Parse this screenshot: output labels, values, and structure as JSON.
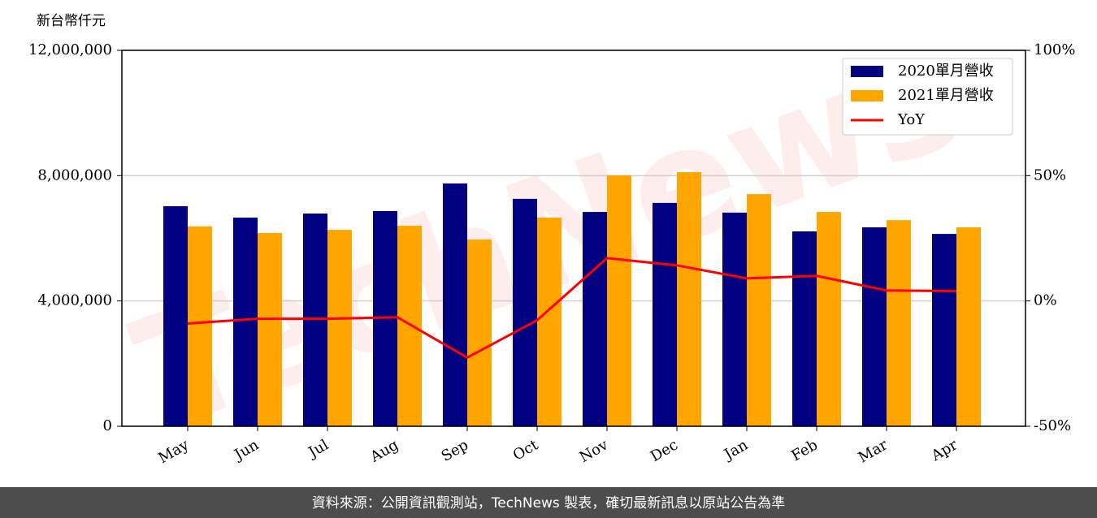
{
  "chart_data": {
    "type": "bar",
    "ylabel": "新台幣仟元",
    "watermark": "TechNews",
    "footer": "資料來源：公開資訊觀測站，TechNews 製表，確切最新訊息以原站公告為準",
    "categories": [
      "May",
      "Jun",
      "Jul",
      "Aug",
      "Sep",
      "Oct",
      "Nov",
      "Dec",
      "Jan",
      "Feb",
      "Mar",
      "Apr"
    ],
    "series": [
      {
        "name": "2020單月營收",
        "type": "bar",
        "color": "#000080",
        "values": [
          7025000,
          6660000,
          6790000,
          6870000,
          7750000,
          7260000,
          6840000,
          7130000,
          6820000,
          6220000,
          6350000,
          6140000
        ]
      },
      {
        "name": "2021單月營收",
        "type": "bar",
        "color": "#ffa500",
        "values": [
          6380000,
          6170000,
          6270000,
          6400000,
          5960000,
          6660000,
          8010000,
          8110000,
          7410000,
          6840000,
          6580000,
          6350000
        ]
      },
      {
        "name": "YoY",
        "type": "line",
        "axis": "y2",
        "color": "#ff0000",
        "values": [
          -9.0,
          -7.1,
          -7.1,
          -6.5,
          -22.6,
          -7.7,
          17.1,
          14.2,
          9.0,
          10.0,
          4.2,
          3.9
        ]
      }
    ],
    "ylim": [
      0,
      12000000
    ],
    "yticks": [
      0,
      {
        "value": 4000000,
        "label": "4,000,000"
      },
      {
        "value": 8000000,
        "label": "8,000,000"
      },
      {
        "value": 12000000,
        "label": "12,000,000"
      }
    ],
    "y2lim": [
      -50,
      100
    ],
    "y2ticks": [
      {
        "value": -50,
        "label": "-50%"
      },
      {
        "value": 0,
        "label": "0%"
      },
      {
        "value": 50,
        "label": "50%"
      },
      {
        "value": 100,
        "label": "100%"
      }
    ],
    "grid": true,
    "legend": "upper right"
  }
}
